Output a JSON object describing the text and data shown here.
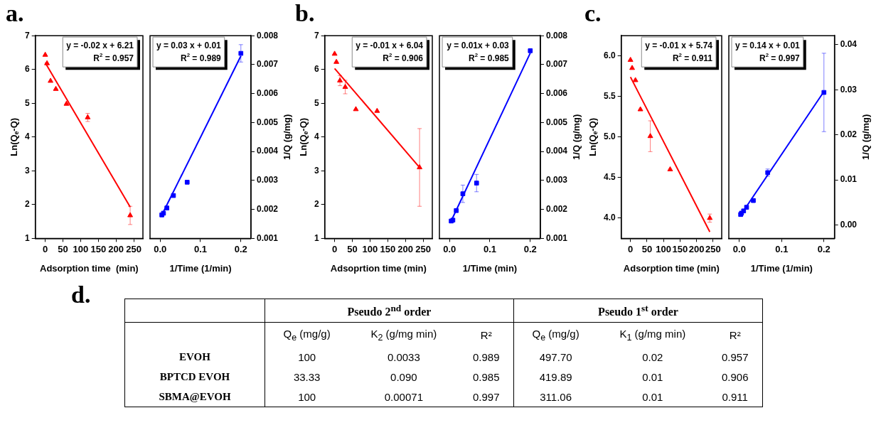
{
  "chart_data": [
    {
      "type": "scatter",
      "title": "a.",
      "xlabel": "Adsorption time  (min)",
      "ylabel": "Ln(Q$_{e}$-Q)",
      "xlim": [
        -28,
        276
      ],
      "xticks": [
        0,
        50,
        100,
        150,
        200,
        250
      ],
      "ylim": [
        1,
        7
      ],
      "yticks": [
        1,
        2,
        3,
        4,
        5,
        6,
        7
      ],
      "annotations": [
        "y = -0.02 x + 6.21",
        "R$^{2}$ = 0.957"
      ],
      "series": [
        {
          "type": "scatter",
          "marker": "triangle",
          "color": "#ff0000",
          "x": [
            0,
            5,
            15,
            30,
            60,
            120,
            240
          ],
          "values": [
            6.43,
            6.18,
            5.66,
            5.42,
            4.98,
            4.58,
            1.68
          ],
          "errors": [
            null,
            null,
            null,
            null,
            null,
            0.12,
            0.27
          ]
        },
        {
          "type": "line",
          "color": "#ff0000",
          "x": [
            0,
            240
          ],
          "values": [
            6.2,
            1.93
          ]
        }
      ]
    },
    {
      "type": "scatter",
      "xlabel": "1/Time (1/min)",
      "y2label": "1/Q (g/mg)",
      "xlim": [
        -0.025,
        0.225
      ],
      "xticks": [
        {
          "value": 0,
          "label": "0.0"
        },
        {
          "value": 0.1,
          "label": "0.1"
        },
        {
          "value": 0.2,
          "label": "0.2"
        }
      ],
      "y2lim": [
        0.001,
        0.008
      ],
      "y2ticks": [
        0.001,
        0.002,
        0.003,
        0.004,
        0.005,
        0.006,
        0.007,
        0.008
      ],
      "annotations": [
        "y = 0.03 x + 0.01",
        "R$^{2}$ = 0.989"
      ],
      "series": [
        {
          "type": "scatter",
          "axis": "y2",
          "marker": "square",
          "color": "#0000ff",
          "x": [
            0.0042,
            0.0083,
            0.0167,
            0.033,
            0.067,
            0.2
          ],
          "values": [
            0.00181,
            0.00187,
            0.00205,
            0.00248,
            0.00294,
            0.00739
          ],
          "errors": [
            null,
            null,
            null,
            null,
            null,
            0.0003
          ]
        },
        {
          "type": "line",
          "axis": "y2",
          "color": "#0000ff",
          "x": [
            0.004,
            0.2
          ],
          "values": [
            0.0018,
            0.0073
          ]
        }
      ]
    },
    {
      "type": "scatter",
      "title": "b.",
      "xlabel": "Adsoprtion time (min)",
      "ylabel": "Ln(Q$_{e}$-Q)",
      "xlim": [
        -28,
        276
      ],
      "xticks": [
        0,
        50,
        100,
        150,
        200,
        250
      ],
      "ylim": [
        1,
        7
      ],
      "yticks": [
        1,
        2,
        3,
        4,
        5,
        6,
        7
      ],
      "annotations": [
        "y = -0.01 x + 6.04",
        "R$^{2}$ = 0.906"
      ],
      "series": [
        {
          "type": "scatter",
          "marker": "triangle",
          "color": "#ff0000",
          "x": [
            0,
            5,
            15,
            30,
            60,
            120,
            240
          ],
          "values": [
            6.46,
            6.22,
            5.67,
            5.48,
            4.82,
            4.77,
            3.1
          ],
          "errors": [
            null,
            null,
            0.15,
            0.2,
            null,
            null,
            1.15
          ]
        },
        {
          "type": "line",
          "color": "#ff0000",
          "x": [
            0,
            240
          ],
          "values": [
            6.03,
            3.1
          ]
        }
      ]
    },
    {
      "type": "scatter",
      "xlabel": "1/Time (min)",
      "y2label": "1/Q (g/mg)",
      "xlim": [
        -0.025,
        0.225
      ],
      "xticks": [
        {
          "value": 0,
          "label": "0.0"
        },
        {
          "value": 0.1,
          "label": "0.1"
        },
        {
          "value": 0.2,
          "label": "0.2"
        }
      ],
      "y2lim": [
        0.001,
        0.008
      ],
      "y2ticks": [
        0.001,
        0.002,
        0.003,
        0.004,
        0.005,
        0.006,
        0.007,
        0.008
      ],
      "annotations": [
        "y = 0.01x + 0.03",
        "R$^{2}$ = 0.985"
      ],
      "series": [
        {
          "type": "scatter",
          "axis": "y2",
          "marker": "square",
          "color": "#0000ff",
          "x": [
            0.0042,
            0.0083,
            0.0167,
            0.033,
            0.067,
            0.2
          ],
          "values": [
            0.0016,
            0.00163,
            0.00196,
            0.00254,
            0.00291,
            0.00748
          ],
          "errors": [
            null,
            null,
            null,
            0.0003,
            0.0003,
            null
          ]
        },
        {
          "type": "line",
          "axis": "y2",
          "color": "#0000ff",
          "x": [
            0.004,
            0.2
          ],
          "values": [
            0.0016,
            0.0074
          ]
        }
      ]
    },
    {
      "type": "scatter",
      "title": "c.",
      "xlabel": "Adsorption time (min)",
      "ylabel": "Ln(Q$_{e}$-Q)",
      "xlim": [
        -28,
        276
      ],
      "xticks": [
        0,
        50,
        100,
        150,
        200,
        250
      ],
      "ylim": [
        3.75,
        6.25
      ],
      "yticks": [
        {
          "value": 4,
          "label": "4.0"
        },
        {
          "value": 4.5,
          "label": "4.5"
        },
        {
          "value": 5,
          "label": "5.0"
        },
        {
          "value": 5.5,
          "label": "5.5"
        },
        {
          "value": 6,
          "label": "6.0"
        }
      ],
      "annotations": [
        "y = -0.01 x + 5.74",
        "R$^{2}$ = 0.911"
      ],
      "series": [
        {
          "type": "scatter",
          "marker": "triangle",
          "color": "#ff0000",
          "x": [
            0,
            5,
            15,
            30,
            60,
            120,
            240
          ],
          "values": [
            5.95,
            5.85,
            5.7,
            5.34,
            5.01,
            4.6,
            4.0
          ],
          "errors": [
            null,
            null,
            null,
            null,
            0.19,
            null,
            0.05
          ]
        },
        {
          "type": "line",
          "color": "#ff0000",
          "x": [
            0,
            240
          ],
          "values": [
            5.74,
            3.83
          ]
        }
      ]
    },
    {
      "type": "scatter",
      "xlabel": "1/Time (1/min)",
      "y2label": "1/Q (g/mg)",
      "xlim": [
        -0.025,
        0.225
      ],
      "xticks": [
        {
          "value": 0,
          "label": "0.0"
        },
        {
          "value": 0.1,
          "label": "0.1"
        },
        {
          "value": 0.2,
          "label": "0.2"
        }
      ],
      "y2lim": [
        -0.003,
        0.042
      ],
      "y2ticks": [
        {
          "value": 0,
          "label": "0.00"
        },
        {
          "value": 0.01,
          "label": "0.01"
        },
        {
          "value": 0.02,
          "label": "0.02"
        },
        {
          "value": 0.03,
          "label": "0.03"
        },
        {
          "value": 0.04,
          "label": "0.04"
        }
      ],
      "annotations": [
        "y = 0.14 x + 0.01",
        "R$^{2}$ = 0.997"
      ],
      "series": [
        {
          "type": "scatter",
          "axis": "y2",
          "marker": "square",
          "color": "#0000ff",
          "x": [
            0.003,
            0.005,
            0.01,
            0.017,
            0.033,
            0.067,
            0.2
          ],
          "values": [
            0.0023,
            0.0026,
            0.0031,
            0.0039,
            0.0054,
            0.0116,
            0.0294
          ],
          "errors": [
            null,
            null,
            null,
            null,
            null,
            0.0008,
            0.0087
          ]
        },
        {
          "type": "line",
          "axis": "y2",
          "color": "#0000ff",
          "x": [
            0.004,
            0.2
          ],
          "values": [
            0.0023,
            0.0296
          ]
        }
      ]
    },
    {
      "type": "other",
      "title": "d.",
      "annotations": [
        "Pseudo 2$^{nd}$ order",
        "Pseudo 1$^{st}$ order",
        "Q$_{e}$ (mg/g)",
        "K$_{2}$ (g/mg min)",
        "R²",
        "Q$_{e}$ (mg/g)",
        "K$_{1}$ (g/mg min)",
        "R²",
        "EVOH",
        "100",
        "0.0033",
        "0.989",
        "497.70",
        "0.02",
        "0.957",
        "BPTCD  EVOH",
        "33.33",
        "0.090",
        "0.985",
        "419.89",
        "0.01",
        "0.906",
        "SBMA@EVOH",
        "100",
        "0.00071",
        "0.997",
        "311.06",
        "0.01",
        "0.911"
      ]
    }
  ]
}
